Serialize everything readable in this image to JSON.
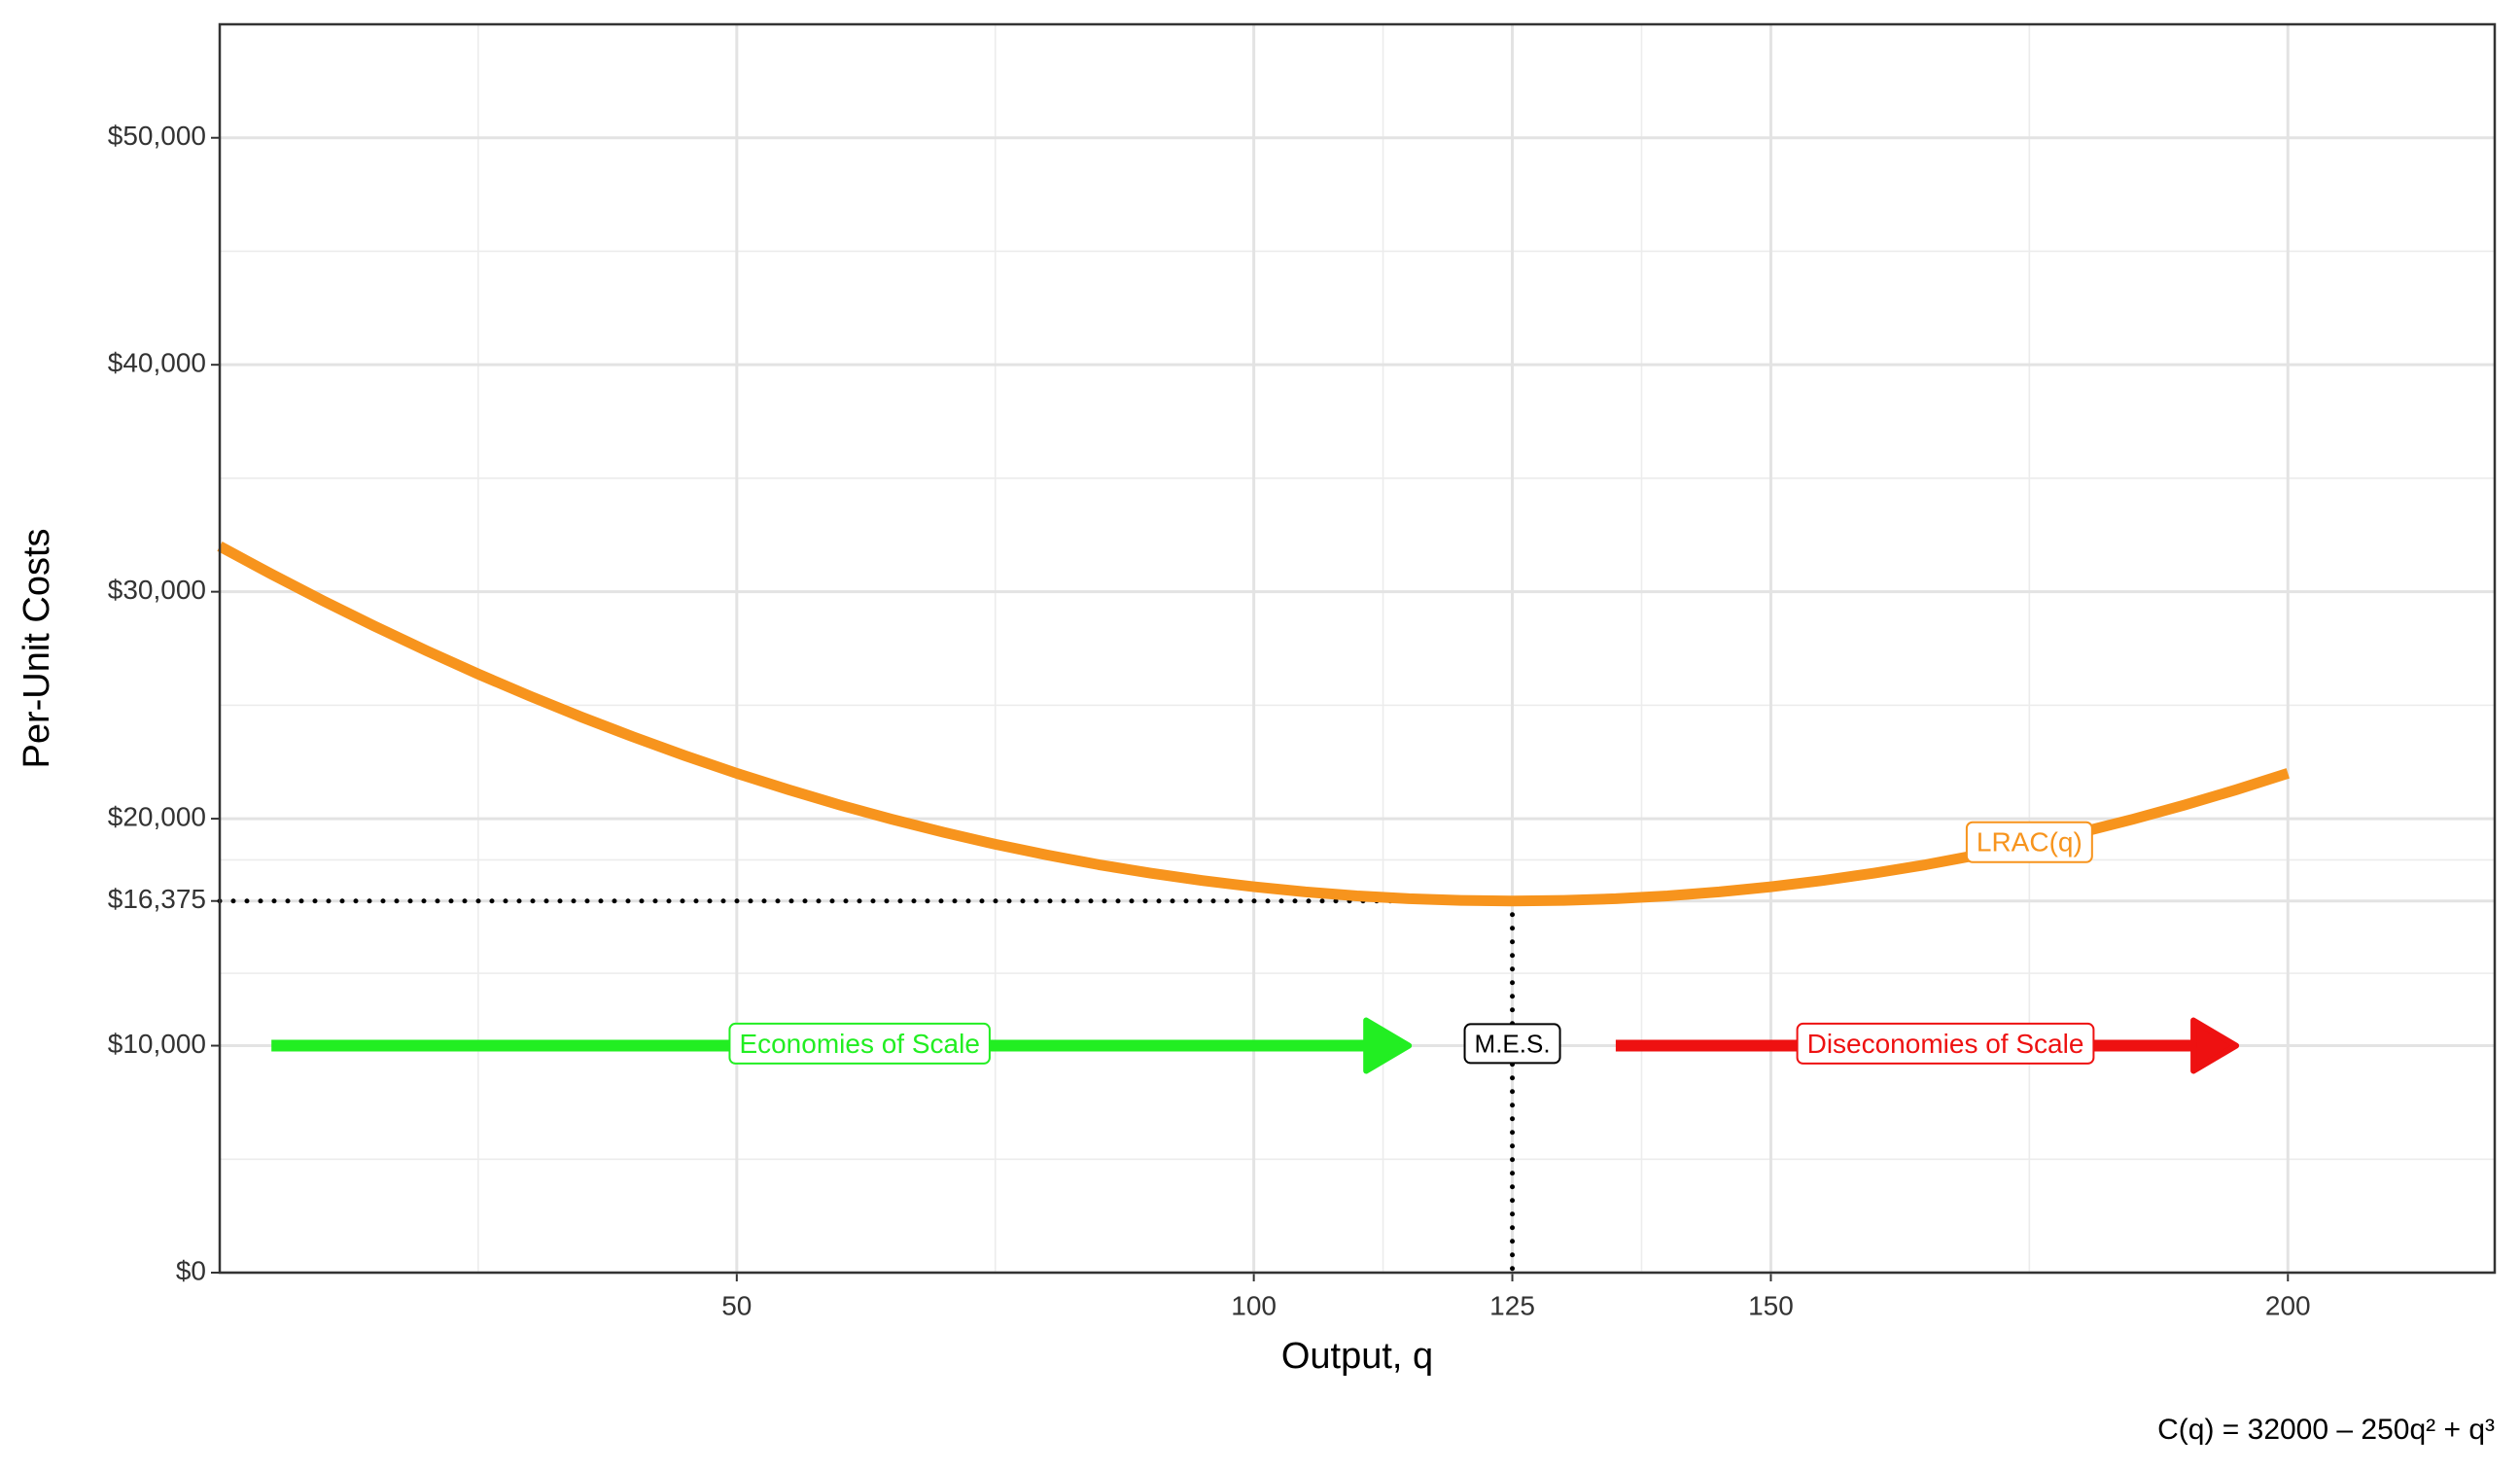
{
  "chart_data": {
    "type": "line",
    "x_label": "Output, q",
    "y_label": "Per-Unit Costs",
    "caption": "C(q) = 32000 – 250q² + q³",
    "x": [
      0,
      5,
      10,
      15,
      20,
      25,
      30,
      35,
      40,
      45,
      50,
      55,
      60,
      65,
      70,
      75,
      80,
      85,
      90,
      95,
      100,
      105,
      110,
      115,
      120,
      125,
      130,
      135,
      140,
      145,
      150,
      155,
      160,
      165,
      170,
      175,
      180,
      185,
      190,
      195,
      200
    ],
    "series": [
      {
        "name": "LRAC(q)",
        "color": "#f7941d",
        "values": [
          32000,
          30775,
          29600,
          28475,
          27400,
          26375,
          25400,
          24475,
          23600,
          22775,
          22000,
          21275,
          20600,
          19975,
          19400,
          18875,
          18400,
          17975,
          17600,
          17275,
          17000,
          16775,
          16600,
          16475,
          16400,
          16375,
          16400,
          16475,
          16600,
          16775,
          17000,
          17275,
          17600,
          17975,
          18400,
          18875,
          19400,
          19975,
          20600,
          21275,
          22000
        ]
      }
    ],
    "xlim": [
      0,
      220
    ],
    "ylim": [
      0,
      55000
    ],
    "xticks": [
      50,
      100,
      125,
      150,
      200
    ],
    "yticks": [
      {
        "value": 0,
        "label": "$0"
      },
      {
        "value": 10000,
        "label": "$10,000"
      },
      {
        "value": 16375,
        "label": "$16,375"
      },
      {
        "value": 20000,
        "label": "$20,000"
      },
      {
        "value": 30000,
        "label": "$30,000"
      },
      {
        "value": 40000,
        "label": "$40,000"
      },
      {
        "value": 50000,
        "label": "$50,000"
      }
    ],
    "grid": true,
    "min_point": {
      "x": 125,
      "y": 16375,
      "label": "M.E.S."
    },
    "arrows": [
      {
        "label": "Economies of Scale",
        "color": "#22ee22",
        "x": [
          5,
          115
        ],
        "y": 10000
      },
      {
        "label": "Diseconomies of Scale",
        "color": "#ee1111",
        "x": [
          135,
          195
        ],
        "y": 10000
      }
    ]
  }
}
